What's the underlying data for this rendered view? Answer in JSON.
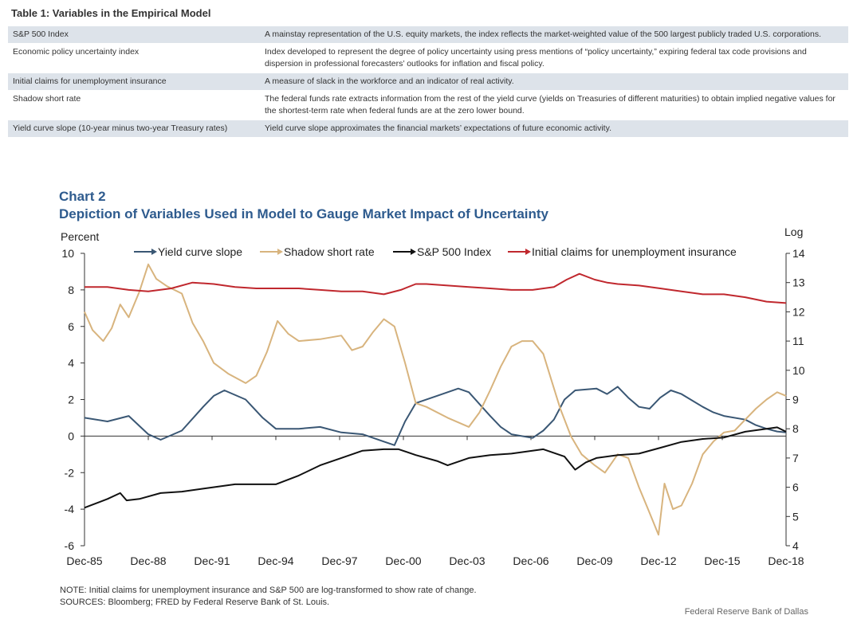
{
  "table": {
    "title": "Table 1: Variables in the Empirical Model",
    "rows": [
      {
        "name": "S&P 500 Index",
        "desc": "A mainstay representation of the U.S. equity markets, the index reflects the market-weighted value of the 500 largest publicly traded U.S. corporations."
      },
      {
        "name": "Economic policy uncertainty index",
        "desc": "Index developed to represent the degree of policy uncertainty using press mentions of “policy uncertainty,” expiring federal tax code provisions and dispersion in professional forecasters’ outlooks for inflation and fiscal policy."
      },
      {
        "name": "Initial claims for unemployment insurance",
        "desc": "A measure of slack in the workforce and an indicator of real activity."
      },
      {
        "name": "Shadow short rate",
        "desc": "The federal funds rate extracts information from the rest of the yield curve (yields on Treasuries of different maturities) to obtain implied negative values for the shortest-term rate when federal funds are at the zero lower bound."
      },
      {
        "name": "Yield curve slope (10-year minus two-year Treasury rates)",
        "desc": "Yield curve slope approximates the financial markets’ expectations of future economic activity."
      }
    ]
  },
  "chart_data": {
    "type": "line",
    "title": "Chart 2",
    "subtitle": "Depiction of Variables Used in Model to Gauge Market Impact of Uncertainty",
    "ylabel_left": "Percent",
    "ylabel_right": "Log",
    "ylim_left": [
      -6,
      10
    ],
    "ylim_right": [
      4,
      14
    ],
    "xlim": [
      1985.92,
      2018.92
    ],
    "x_ticks": [
      1985.92,
      1988.92,
      1991.92,
      1994.92,
      1997.92,
      2000.92,
      2003.92,
      2006.92,
      2009.92,
      2012.92,
      2015.92,
      2018.92
    ],
    "x_tick_labels": [
      "Dec-85",
      "Dec-88",
      "Dec-91",
      "Dec-94",
      "Dec-97",
      "Dec-00",
      "Dec-03",
      "Dec-06",
      "Dec-09",
      "Dec-12",
      "Dec-15",
      "Dec-18"
    ],
    "y_ticks_left": [
      -6,
      -4,
      -2,
      0,
      2,
      4,
      6,
      8,
      10
    ],
    "y_ticks_right": [
      4,
      5,
      6,
      7,
      8,
      9,
      10,
      11,
      12,
      13,
      14
    ],
    "legend_position": "top",
    "series": [
      {
        "name": "Yield curve slope",
        "axis": "left",
        "color": "#3a5774",
        "x": [
          1985.92,
          1987.0,
          1988.0,
          1988.92,
          1989.5,
          1990.5,
          1991.5,
          1992.0,
          1992.5,
          1993.5,
          1994.3,
          1994.92,
          1996.0,
          1997.0,
          1998.0,
          1999.0,
          2000.0,
          2000.5,
          2001.0,
          2001.5,
          2002.5,
          2003.5,
          2004.0,
          2005.0,
          2005.5,
          2006.0,
          2007.0,
          2007.5,
          2008.0,
          2008.5,
          2009.0,
          2010.0,
          2010.5,
          2011.0,
          2011.5,
          2012.0,
          2012.5,
          2013.0,
          2013.5,
          2014.0,
          2015.0,
          2015.5,
          2016.0,
          2017.0,
          2017.5,
          2018.0,
          2018.5,
          2018.92
        ],
        "values": [
          1.0,
          0.8,
          1.1,
          0.1,
          -0.2,
          0.3,
          1.6,
          2.2,
          2.5,
          2.0,
          1.0,
          0.4,
          0.4,
          0.5,
          0.2,
          0.1,
          -0.3,
          -0.5,
          0.8,
          1.8,
          2.2,
          2.6,
          2.4,
          1.1,
          0.5,
          0.1,
          -0.1,
          0.3,
          0.9,
          2.0,
          2.5,
          2.6,
          2.3,
          2.7,
          2.1,
          1.6,
          1.5,
          2.1,
          2.5,
          2.3,
          1.6,
          1.3,
          1.1,
          0.9,
          0.6,
          0.4,
          0.25,
          0.2
        ]
      },
      {
        "name": "Shadow short rate",
        "axis": "left",
        "color": "#d8b47e",
        "x": [
          1985.92,
          1986.3,
          1986.8,
          1987.2,
          1987.6,
          1988.0,
          1988.5,
          1988.92,
          1989.3,
          1989.8,
          1990.5,
          1991.0,
          1991.5,
          1992.0,
          1992.7,
          1993.5,
          1994.0,
          1994.5,
          1995.0,
          1995.5,
          1996.0,
          1997.0,
          1998.0,
          1998.5,
          1999.0,
          1999.5,
          2000.0,
          2000.5,
          2001.0,
          2001.5,
          2002.0,
          2003.0,
          2004.0,
          2004.5,
          2005.0,
          2005.5,
          2006.0,
          2006.5,
          2007.0,
          2007.5,
          2007.9,
          2008.3,
          2008.8,
          2009.3,
          2009.92,
          2010.4,
          2011.0,
          2011.5,
          2012.0,
          2012.5,
          2012.92,
          2013.2,
          2013.6,
          2014.0,
          2014.5,
          2015.0,
          2015.5,
          2016.0,
          2016.5,
          2017.0,
          2017.5,
          2018.0,
          2018.5,
          2018.92
        ],
        "values": [
          6.8,
          5.8,
          5.2,
          5.9,
          7.2,
          6.5,
          7.9,
          9.4,
          8.6,
          8.2,
          7.8,
          6.2,
          5.2,
          4.0,
          3.4,
          2.9,
          3.3,
          4.6,
          6.3,
          5.6,
          5.2,
          5.3,
          5.5,
          4.7,
          4.9,
          5.7,
          6.4,
          6.0,
          4.0,
          1.8,
          1.6,
          1.0,
          0.5,
          1.3,
          2.5,
          3.8,
          4.9,
          5.2,
          5.2,
          4.5,
          3.0,
          1.5,
          0.0,
          -1.0,
          -1.6,
          -2.0,
          -1.0,
          -1.2,
          -2.8,
          -4.2,
          -5.4,
          -2.6,
          -4.0,
          -3.8,
          -2.6,
          -1.0,
          -0.3,
          0.2,
          0.3,
          0.9,
          1.5,
          2.0,
          2.4,
          2.2
        ]
      },
      {
        "name": "S&P 500 Index",
        "axis": "right",
        "color": "#111111",
        "x": [
          1985.92,
          1987.0,
          1987.6,
          1987.9,
          1988.5,
          1989.5,
          1990.5,
          1991.5,
          1993.0,
          1994.92,
          1996.0,
          1997.0,
          1998.0,
          1999.0,
          2000.0,
          2000.7,
          2001.5,
          2002.5,
          2003.0,
          2004.0,
          2005.0,
          2006.0,
          2007.5,
          2008.5,
          2009.0,
          2009.5,
          2010.0,
          2011.0,
          2012.0,
          2013.0,
          2014.0,
          2015.0,
          2016.0,
          2017.0,
          2018.0,
          2018.5,
          2018.92
        ],
        "values": [
          5.3,
          5.6,
          5.8,
          5.55,
          5.6,
          5.8,
          5.85,
          5.95,
          6.1,
          6.1,
          6.4,
          6.75,
          7.0,
          7.25,
          7.3,
          7.3,
          7.1,
          6.9,
          6.75,
          7.0,
          7.1,
          7.15,
          7.3,
          7.05,
          6.6,
          6.85,
          7.0,
          7.1,
          7.15,
          7.35,
          7.55,
          7.65,
          7.7,
          7.9,
          8.0,
          8.05,
          7.9
        ]
      },
      {
        "name": "Initial claims for unemployment insurance",
        "axis": "right",
        "color": "#c0282e",
        "x": [
          1985.92,
          1987.0,
          1988.0,
          1988.92,
          1990.0,
          1991.0,
          1992.0,
          1993.0,
          1994.0,
          1995.0,
          1996.0,
          1997.0,
          1998.0,
          1999.0,
          2000.0,
          2000.8,
          2001.5,
          2002.0,
          2003.0,
          2004.0,
          2005.0,
          2006.0,
          2007.0,
          2008.0,
          2008.6,
          2009.2,
          2009.92,
          2010.5,
          2011.0,
          2012.0,
          2013.0,
          2014.0,
          2015.0,
          2016.0,
          2017.0,
          2018.0,
          2018.92
        ],
        "values": [
          12.85,
          12.85,
          12.75,
          12.7,
          12.8,
          13.0,
          12.95,
          12.85,
          12.8,
          12.8,
          12.8,
          12.75,
          12.7,
          12.7,
          12.6,
          12.75,
          12.95,
          12.95,
          12.9,
          12.85,
          12.8,
          12.75,
          12.75,
          12.85,
          13.1,
          13.3,
          13.1,
          13.0,
          12.95,
          12.9,
          12.8,
          12.7,
          12.6,
          12.6,
          12.5,
          12.35,
          12.3
        ]
      }
    ]
  },
  "legend_items": [
    "Yield curve slope",
    "Shadow short rate",
    "S&P 500 Index",
    "Initial claims for unemployment insurance"
  ],
  "note": "NOTE:  Initial claims for unemployment  insurance and S&P 500 are log-transformed  to show rate of change.",
  "sources": "SOURCES:  Bloomberg;  FRED by Federal Reserve  Bank of St. Louis.",
  "credit": "Federal Reserve  Bank of Dallas"
}
